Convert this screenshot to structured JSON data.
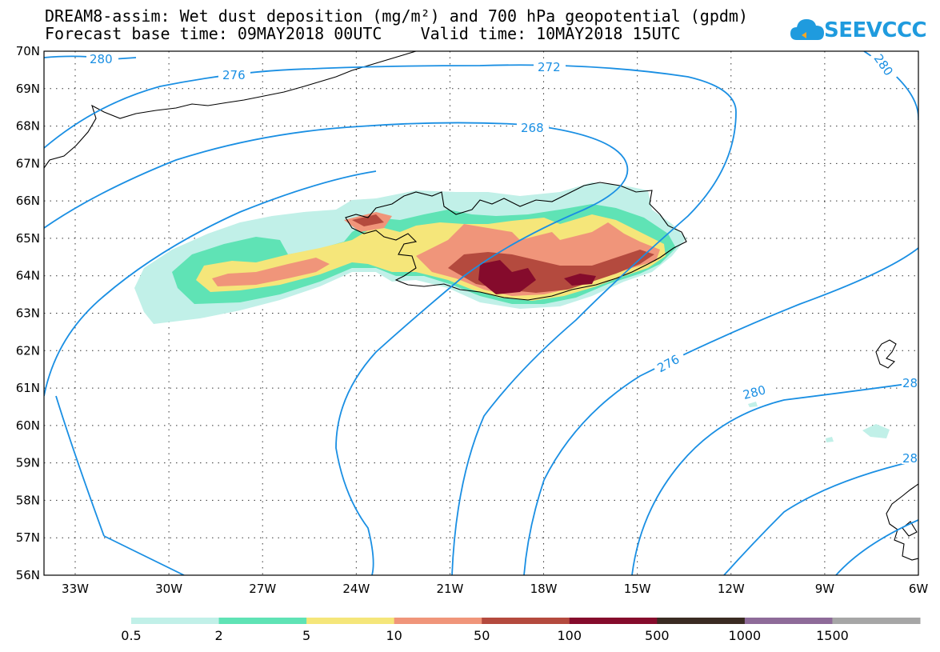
{
  "title": {
    "line1": "DREAM8-assim: Wet dust deposition (mg/m²) and 700 hPa geopotential (gpdm)",
    "line2": "Forecast base time: 09MAY2018 00UTC    Valid time: 10MAY2018 15UTC"
  },
  "logo": {
    "text": "SEEVCCC",
    "icon": "cloud-icon",
    "color": "#1f9bde"
  },
  "axes": {
    "lat_labels": [
      "70N",
      "69N",
      "68N",
      "67N",
      "66N",
      "65N",
      "64N",
      "63N",
      "62N",
      "61N",
      "60N",
      "59N",
      "58N",
      "57N",
      "56N"
    ],
    "lon_labels": [
      "33W",
      "30W",
      "27W",
      "24W",
      "21W",
      "18W",
      "15W",
      "12W",
      "9W",
      "6W"
    ]
  },
  "contour_labels": [
    "280",
    "276",
    "272",
    "268",
    "276",
    "280",
    "280",
    "28",
    "28"
  ],
  "legend": {
    "colors": [
      "#c1f0e8",
      "#5fe3b5",
      "#f5e67a",
      "#f0957a",
      "#b44a3e",
      "#850b2c",
      "#3a2b22",
      "#8e6b99",
      "#a6a6a6"
    ],
    "labels": [
      "0.5",
      "2",
      "5",
      "10",
      "50",
      "100",
      "500",
      "1000",
      "1500"
    ]
  },
  "colors": {
    "contour": "#1a8fe3",
    "coastline": "#000000"
  }
}
